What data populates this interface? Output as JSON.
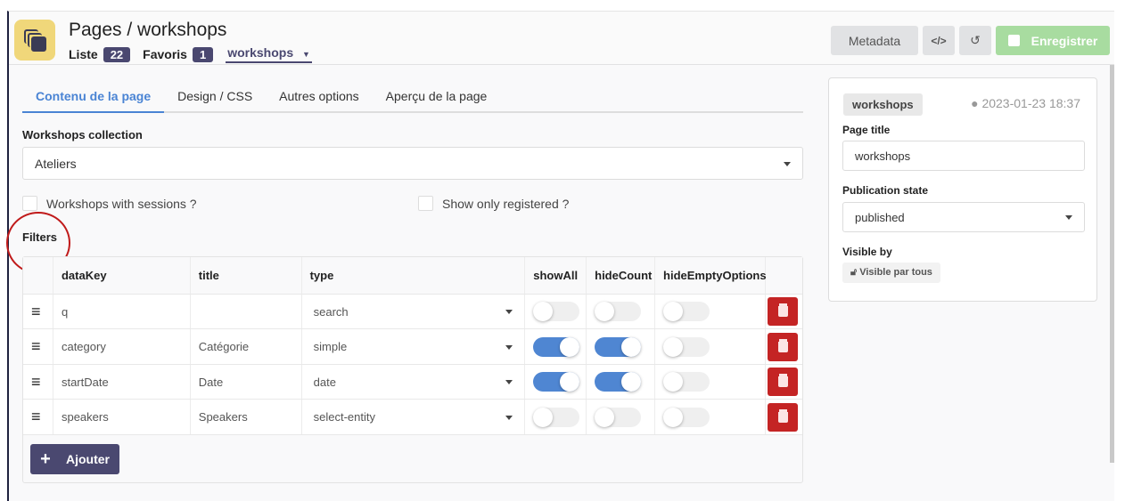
{
  "header": {
    "title": "Pages / workshops",
    "list_label": "Liste",
    "list_count": "22",
    "fav_label": "Favoris",
    "fav_count": "1",
    "current": "workshops",
    "metadata": "Metadata",
    "code_icon": "</>",
    "save": "Enregistrer"
  },
  "tabs": [
    {
      "label": "Contenu de la page",
      "active": true
    },
    {
      "label": "Design / CSS"
    },
    {
      "label": "Autres options"
    },
    {
      "label": "Aperçu de la page"
    }
  ],
  "form": {
    "collection_label": "Workshops collection",
    "collection_value": "Ateliers",
    "with_sessions": "Workshops with sessions ?",
    "only_registered": "Show only registered ?",
    "filters_label": "Filters"
  },
  "table": {
    "headers": [
      "dataKey",
      "title",
      "type",
      "showAll",
      "hideCount",
      "hideEmptyOptions"
    ],
    "rows": [
      {
        "dataKey": "q",
        "title": "",
        "type": "search",
        "showAll": false,
        "hideCount": false,
        "hideEmptyOptions": false
      },
      {
        "dataKey": "category",
        "title": "Catégorie",
        "type": "simple",
        "showAll": true,
        "hideCount": true,
        "hideEmptyOptions": false
      },
      {
        "dataKey": "startDate",
        "title": "Date",
        "type": "date",
        "showAll": true,
        "hideCount": true,
        "hideEmptyOptions": false
      },
      {
        "dataKey": "speakers",
        "title": "Speakers",
        "type": "select-entity",
        "showAll": false,
        "hideCount": false,
        "hideEmptyOptions": false
      }
    ],
    "add": "Ajouter"
  },
  "panel": {
    "slug": "workshops",
    "date": "2023-01-23 18:37",
    "title_label": "Page title",
    "title_value": "workshops",
    "state_label": "Publication state",
    "state_value": "published",
    "visible_label": "Visible by",
    "visible_value": "Visible par tous"
  },
  "colors": {
    "accent": "#4a84d4",
    "primary": "#4a4870",
    "danger": "#c42424",
    "save": "#a8dca0",
    "logo": "#f0d77a"
  }
}
